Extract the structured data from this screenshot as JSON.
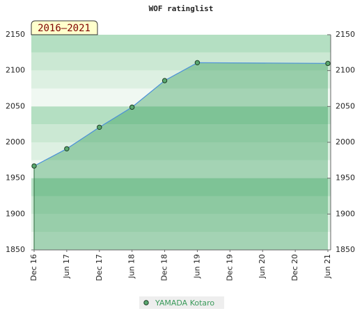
{
  "chart_data": {
    "type": "line",
    "title": "WOF ratinglist",
    "badge": "2016–2021",
    "xticks": [
      "Dec 16",
      "Jun 17",
      "Dec 17",
      "Jun 18",
      "Dec 18",
      "Jun 19",
      "Dec 19",
      "Jun 20",
      "Dec 20",
      "Jun 21"
    ],
    "x": [
      "Dec 16",
      "Jun 17",
      "Dec 17",
      "Jun 18",
      "Dec 18",
      "Jun 19",
      "Jun 21"
    ],
    "series": [
      {
        "name": "YAMADA Kotaro",
        "color": "#4a90d9",
        "values": [
          1967,
          1991,
          2021,
          2049,
          2086,
          2111,
          2110
        ]
      }
    ],
    "ylim": [
      1850,
      2150
    ],
    "yticks": [
      1850,
      1900,
      1950,
      2000,
      2050,
      2100,
      2150
    ]
  }
}
